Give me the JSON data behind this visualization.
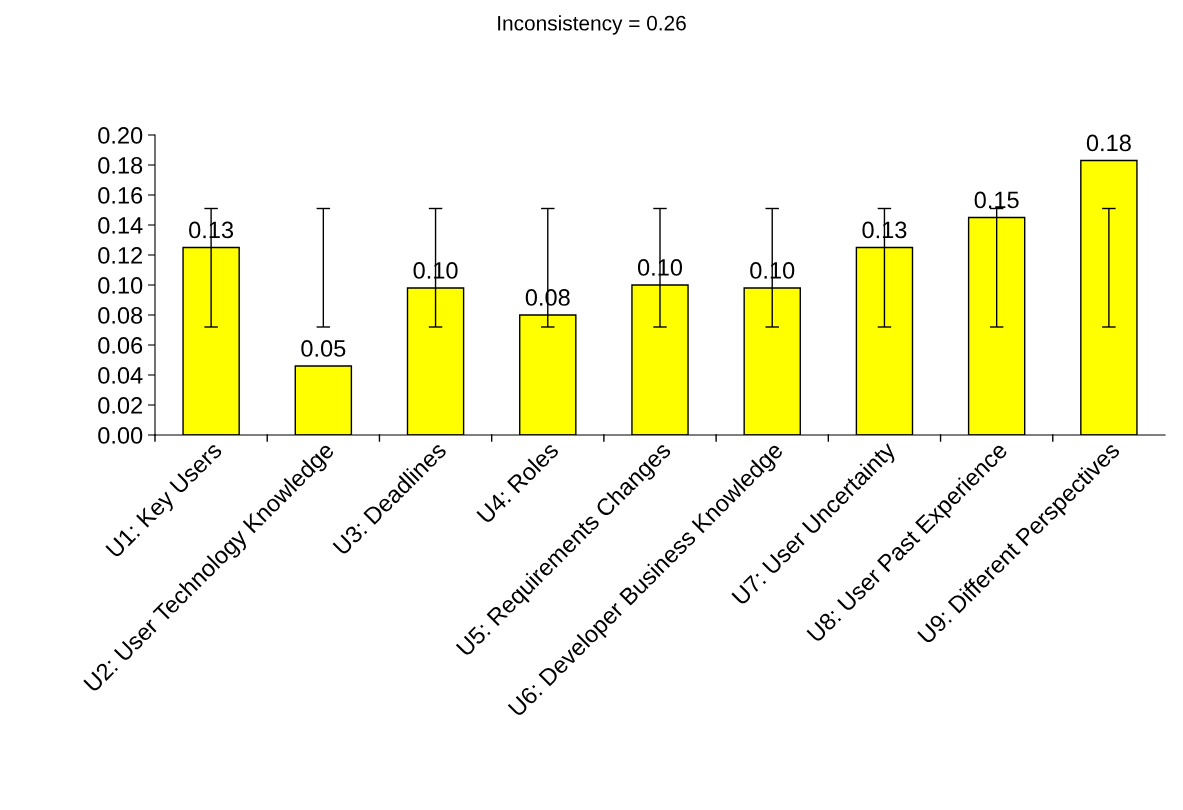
{
  "chart_data": {
    "type": "bar",
    "title": "Inconsistency = 0.26",
    "categories": [
      "U1: Key Users",
      "U2: User Technology Knowledge",
      "U3: Deadlines",
      "U4: Roles",
      "U5: Requirements Changes",
      "U6: Developer Business Knowledge",
      "U7: User Uncertainty",
      "U8: User Past Experience",
      "U9: Different Perspectives"
    ],
    "values": [
      0.125,
      0.046,
      0.098,
      0.08,
      0.1,
      0.098,
      0.125,
      0.145,
      0.183
    ],
    "value_labels": [
      "0.13",
      "0.05",
      "0.10",
      "0.08",
      "0.10",
      "0.10",
      "0.13",
      "0.15",
      "0.18"
    ],
    "errors": [
      [
        0.072,
        0.151
      ],
      [
        0.072,
        0.151
      ],
      [
        0.072,
        0.151
      ],
      [
        0.072,
        0.151
      ],
      [
        0.072,
        0.151
      ],
      [
        0.072,
        0.151
      ],
      [
        0.072,
        0.151
      ],
      [
        0.072,
        0.151
      ],
      [
        0.072,
        0.151
      ]
    ],
    "color": "#ffff00",
    "ylim": [
      0,
      0.2
    ],
    "yticks": [
      {
        "value": 0,
        "label": "0.00"
      },
      {
        "value": 0.02,
        "label": "0.02"
      },
      {
        "value": 0.04,
        "label": "0.04"
      },
      {
        "value": 0.06,
        "label": "0.06"
      },
      {
        "value": 0.08,
        "label": "0.08"
      },
      {
        "value": 0.1,
        "label": "0.10"
      },
      {
        "value": 0.12,
        "label": "0.12"
      },
      {
        "value": 0.14,
        "label": "0.14"
      },
      {
        "value": 0.16,
        "label": "0.16"
      },
      {
        "value": 0.18,
        "label": "0.18"
      },
      {
        "value": 0.2,
        "label": "0.20"
      }
    ],
    "grid": false,
    "legend": false
  }
}
